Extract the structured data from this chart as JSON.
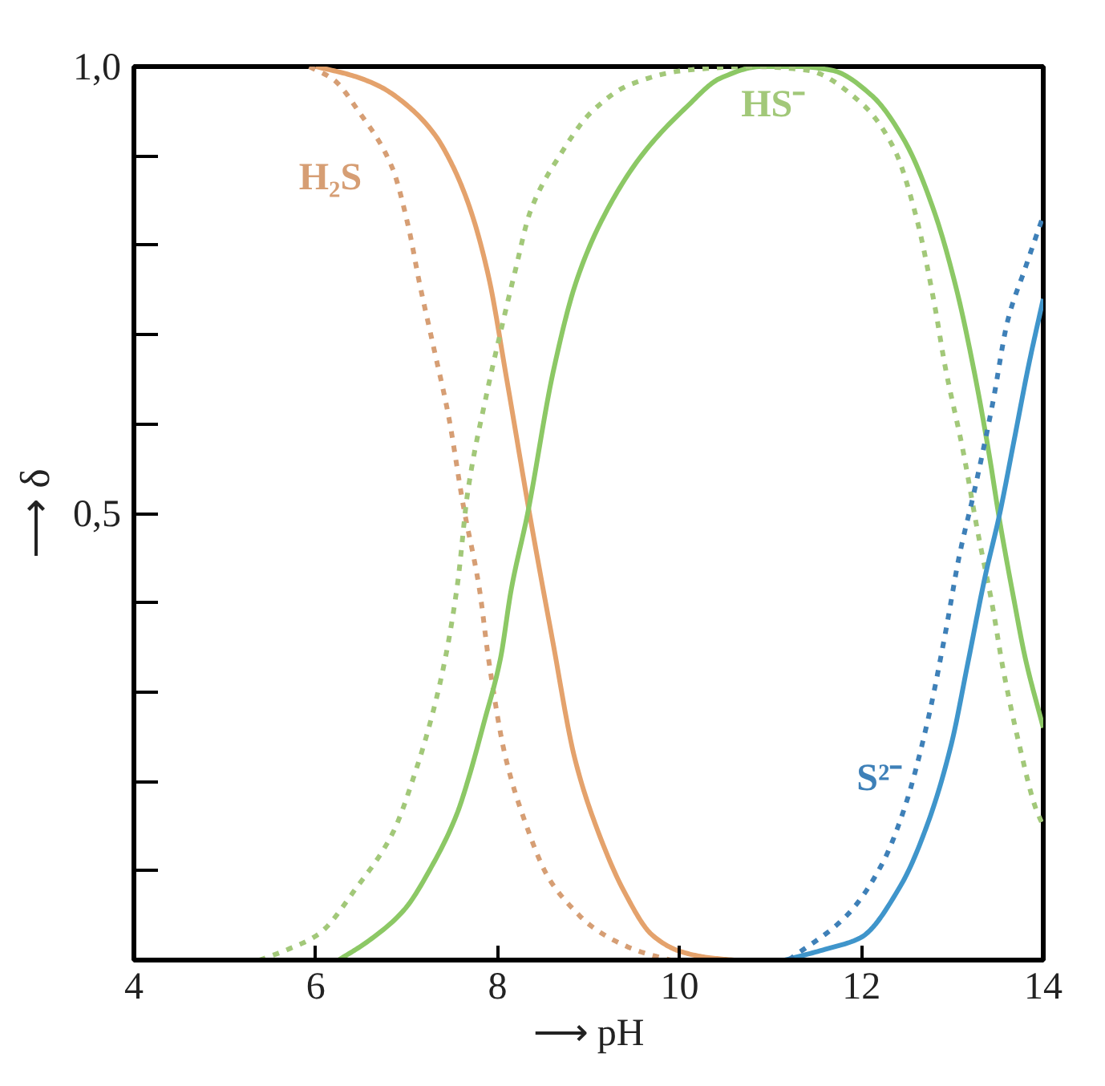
{
  "chart_data": {
    "type": "line",
    "xlabel": "⟶ pH",
    "ylabel": "⟶ δ",
    "xlim": [
      4,
      14
    ],
    "ylim": [
      0,
      1
    ],
    "xticks": [
      4,
      6,
      8,
      10,
      12,
      14
    ],
    "yticks": [
      {
        "value": 0.1,
        "label": null
      },
      {
        "value": 0.2,
        "label": null
      },
      {
        "value": 0.3,
        "label": null
      },
      {
        "value": 0.4,
        "label": null
      },
      {
        "value": 0.5,
        "label": "0,5"
      },
      {
        "value": 0.6,
        "label": null
      },
      {
        "value": 0.7,
        "label": null
      },
      {
        "value": 0.8,
        "label": null
      },
      {
        "value": 0.9,
        "label": null
      },
      {
        "value": 1.0,
        "label": "1,0"
      }
    ],
    "grid": false,
    "series": [
      {
        "color": "#e4a26c",
        "line_style": "solid",
        "x": [
          6.0,
          6.4,
          6.7,
          7.0,
          7.3,
          7.5,
          7.7,
          7.9,
          8.1,
          8.35,
          8.6,
          8.85,
          9.1,
          9.4,
          9.7,
          10.0,
          10.3,
          10.6
        ],
        "values": [
          1.0,
          0.99,
          0.978,
          0.957,
          0.925,
          0.89,
          0.84,
          0.765,
          0.65,
          0.5,
          0.36,
          0.225,
          0.145,
          0.075,
          0.028,
          0.01,
          0.003,
          0.0
        ]
      },
      {
        "name": "H₂S",
        "color": "#d69e74",
        "line_style": "dashed",
        "x": [
          5.93,
          6.2,
          6.47,
          6.84,
          7.02,
          7.14,
          7.3,
          7.46,
          7.62,
          7.8,
          7.9,
          8.08,
          8.29,
          8.56,
          8.85,
          9.03,
          9.32,
          9.58,
          9.9
        ],
        "values": [
          1.0,
          0.985,
          0.95,
          0.887,
          0.82,
          0.758,
          0.684,
          0.609,
          0.51,
          0.415,
          0.337,
          0.23,
          0.158,
          0.092,
          0.055,
          0.038,
          0.02,
          0.009,
          0.0
        ]
      },
      {
        "color": "#8cc865",
        "line_style": "solid",
        "x": [
          6.25,
          6.56,
          6.97,
          7.27,
          7.55,
          7.67,
          7.85,
          8.03,
          8.15,
          8.33,
          8.61,
          8.86,
          9.16,
          9.58,
          10.08,
          10.45,
          10.9,
          11.3,
          11.67,
          12.11,
          12.48,
          12.8,
          13.05,
          13.24,
          13.4,
          13.52,
          13.68,
          13.8,
          14.0
        ],
        "values": [
          0.0,
          0.02,
          0.056,
          0.104,
          0.163,
          0.2,
          0.266,
          0.337,
          0.415,
          0.5,
          0.658,
          0.758,
          0.831,
          0.9,
          0.955,
          0.987,
          1.0,
          1.0,
          0.996,
          0.968,
          0.916,
          0.838,
          0.749,
          0.659,
          0.569,
          0.492,
          0.402,
          0.339,
          0.26
        ]
      },
      {
        "name": "HS⁻",
        "color": "#a2c879",
        "line_style": "dashed",
        "x": [
          5.38,
          5.67,
          6.03,
          6.44,
          6.85,
          7.09,
          7.29,
          7.44,
          7.56,
          7.67,
          7.88,
          8.06,
          8.19,
          8.36,
          8.68,
          9.04,
          9.46,
          10.08,
          10.8,
          11.4,
          11.99,
          12.36,
          12.6,
          12.8,
          12.92,
          13.12,
          13.28,
          13.44,
          13.56,
          13.75,
          13.91,
          14.0
        ],
        "values": [
          0.0,
          0.011,
          0.029,
          0.08,
          0.143,
          0.209,
          0.278,
          0.346,
          0.422,
          0.523,
          0.634,
          0.715,
          0.77,
          0.838,
          0.9,
          0.95,
          0.98,
          0.996,
          1.0,
          0.996,
          0.96,
          0.908,
          0.833,
          0.736,
          0.665,
          0.569,
          0.479,
          0.397,
          0.325,
          0.235,
          0.172,
          0.15
        ]
      },
      {
        "color": "#3f95cb",
        "line_style": "solid",
        "x": [
          11.16,
          11.6,
          11.99,
          12.43,
          12.73,
          12.99,
          13.17,
          13.36,
          13.52,
          13.68,
          13.84,
          14.0
        ],
        "values": [
          0.0,
          0.012,
          0.025,
          0.083,
          0.153,
          0.242,
          0.332,
          0.429,
          0.499,
          0.582,
          0.666,
          0.74
        ]
      },
      {
        "name": "S²⁻",
        "color": "#3e80b8",
        "line_style": "dashed",
        "x": [
          11.2,
          11.84,
          12.23,
          12.48,
          12.73,
          12.92,
          13.08,
          13.24,
          13.44,
          13.61,
          13.8,
          14.0
        ],
        "values": [
          0.0,
          0.05,
          0.108,
          0.172,
          0.268,
          0.364,
          0.454,
          0.524,
          0.621,
          0.716,
          0.774,
          0.833
        ]
      }
    ]
  }
}
